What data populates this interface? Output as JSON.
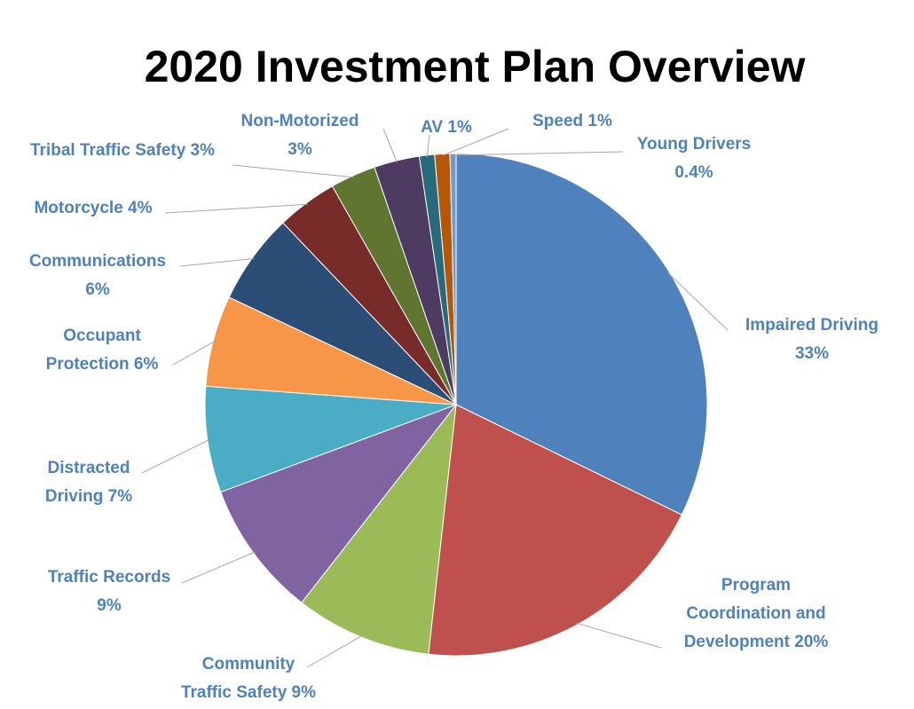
{
  "chart_data": {
    "type": "pie",
    "title": "2020 Investment Plan Overview",
    "label_color": "#4f81bd",
    "leader_color": "#a6a6a6",
    "slices": [
      {
        "name": "Impaired Driving",
        "value": 33,
        "pct_label": "33%",
        "color": "#4f81bd"
      },
      {
        "name": "Program Coordination and Development",
        "value": 20,
        "pct_label": "20%",
        "color": "#c0504d"
      },
      {
        "name": "Community Traffic Safety",
        "value": 9,
        "pct_label": "9%",
        "color": "#9bbb59"
      },
      {
        "name": "Traffic Records",
        "value": 9,
        "pct_label": "9%",
        "color": "#8064a2"
      },
      {
        "name": "Distracted Driving",
        "value": 7,
        "pct_label": "7%",
        "color": "#4bacc6"
      },
      {
        "name": "Occupant Protection",
        "value": 6,
        "pct_label": "6%",
        "color": "#f79646"
      },
      {
        "name": "Communications",
        "value": 6,
        "pct_label": "6%",
        "color": "#2c4d75"
      },
      {
        "name": "Motorcycle",
        "value": 4,
        "pct_label": "4%",
        "color": "#772c2a"
      },
      {
        "name": "Tribal Traffic Safety",
        "value": 3,
        "pct_label": "3%",
        "color": "#5f7530"
      },
      {
        "name": "Non-Motorized",
        "value": 3,
        "pct_label": "3%",
        "color": "#4d3b62"
      },
      {
        "name": "AV",
        "value": 1,
        "pct_label": "1%",
        "color": "#276a7c"
      },
      {
        "name": "Speed",
        "value": 1,
        "pct_label": "1%",
        "color": "#b65708"
      },
      {
        "name": "Young Drivers",
        "value": 0.4,
        "pct_label": "0.4%",
        "color": "#729aca"
      }
    ],
    "label_lines": {
      "Impaired Driving": [
        "Impaired Driving",
        "33%"
      ],
      "Program Coordination and Development": [
        "Program",
        "Coordination and",
        "Development 20%"
      ],
      "Community Traffic Safety": [
        "Community",
        "Traffic Safety 9%"
      ],
      "Traffic Records": [
        "Traffic Records",
        "9%"
      ],
      "Distracted Driving": [
        "Distracted",
        "Driving 7%"
      ],
      "Occupant Protection": [
        "Occupant",
        "Protection 6%"
      ],
      "Communications": [
        "Communications",
        "6%"
      ],
      "Motorcycle": [
        "Motorcycle 4%"
      ],
      "Tribal Traffic Safety": [
        "Tribal Traffic Safety 3%"
      ],
      "Non-Motorized": [
        "Non-Motorized",
        "3%"
      ],
      "AV": [
        "AV 1%"
      ],
      "Speed": [
        "Speed 1%"
      ],
      "Young Drivers": [
        "Young Drivers",
        "0.4%"
      ]
    }
  }
}
